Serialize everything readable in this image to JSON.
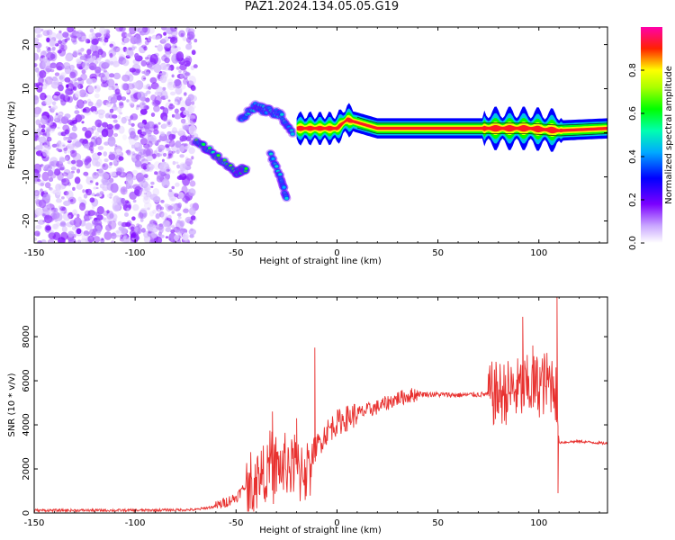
{
  "figure": {
    "title": "PAZ1.2024.134.05.05.G19"
  },
  "chart_data": [
    {
      "type": "heatmap",
      "xlabel": "Height of straight line (km)",
      "ylabel": "Frequency (Hz)",
      "xlim": [
        -150,
        134
      ],
      "ylim": [
        -25,
        24
      ],
      "xticks": [
        -150,
        -100,
        -50,
        0,
        50,
        100
      ],
      "yticks": [
        -20,
        -10,
        0,
        10,
        20
      ],
      "colorbar": {
        "label": "Normalized spectral amplitude",
        "range": [
          0,
          1
        ],
        "ticks": [
          0.0,
          0.2,
          0.4,
          0.6,
          0.8
        ],
        "colormap": [
          "#ffffff",
          "#7b00ff",
          "#0000ff",
          "#00d5ff",
          "#00ff5a",
          "#ffff00",
          "#ff0000",
          "#ff00aa"
        ]
      },
      "features": [
        {
          "name": "noise region",
          "x_range": [
            -150,
            -70
          ],
          "freq_range": [
            -25,
            24
          ],
          "amplitude": 0.08
        },
        {
          "name": "descending track",
          "x": [
            -70,
            -60,
            -50,
            -45
          ],
          "freq": [
            -2,
            -5,
            -9,
            -8
          ],
          "amplitude": 0.45
        },
        {
          "name": "upper branch",
          "x": [
            -48,
            -40,
            -35,
            -28,
            -22
          ],
          "freq": [
            3,
            6,
            5,
            4,
            0
          ],
          "amplitude": 0.3
        },
        {
          "name": "lower branch",
          "x": [
            -33,
            -28,
            -25
          ],
          "freq": [
            -5,
            -10,
            -15
          ],
          "amplitude": 0.25
        },
        {
          "name": "main carrier",
          "x": [
            -20,
            0,
            5,
            20,
            50,
            75,
            95,
            110,
            134
          ],
          "freq": [
            1,
            1,
            3,
            1,
            1,
            1,
            1,
            0.5,
            1
          ],
          "amplitude": 0.95
        }
      ]
    },
    {
      "type": "line",
      "xlabel": "Height of straight line (km)",
      "ylabel": "SNR (10 * v/v)",
      "xlim": [
        -150,
        134
      ],
      "ylim": [
        0,
        9800
      ],
      "xticks": [
        -150,
        -100,
        -50,
        0,
        50,
        100
      ],
      "yticks": [
        0,
        2000,
        4000,
        6000,
        8000
      ],
      "color": "#e8312f",
      "series_anchors": {
        "x": [
          -150,
          -100,
          -70,
          -60,
          -50,
          -42,
          -35,
          -25,
          -15,
          -10,
          -5,
          0,
          10,
          20,
          30,
          40,
          60,
          80,
          90,
          100,
          108,
          110,
          120,
          134
        ],
        "y": [
          120,
          120,
          150,
          300,
          700,
          1600,
          2400,
          2600,
          2400,
          3000,
          3700,
          4100,
          4500,
          4800,
          5200,
          5400,
          5350,
          5400,
          5600,
          5800,
          6000,
          3200,
          3250,
          3150
        ]
      },
      "spikes": [
        {
          "x": -11,
          "y": 7500
        },
        {
          "x": -32,
          "y": 4600
        },
        {
          "x": -20,
          "y": 4300
        },
        {
          "x": 7,
          "y": 4100
        },
        {
          "x": 92,
          "y": 8900
        },
        {
          "x": 97,
          "y": 7600
        },
        {
          "x": 109,
          "y": 9800
        },
        {
          "x": 109.5,
          "y": 900
        }
      ]
    }
  ]
}
